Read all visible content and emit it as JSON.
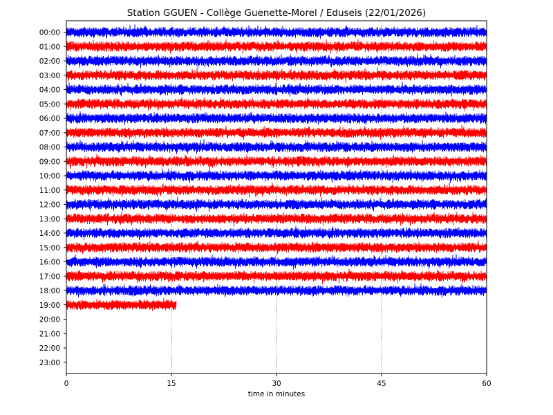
{
  "chart_data": {
    "type": "line",
    "title": "Station GGUEN -  Collège Guenette-Morel / Eduseis (22/01/2026)",
    "xlabel": "time in minutes",
    "ylabel": "",
    "xlim": [
      0,
      60
    ],
    "x_ticks": [
      "0",
      "15",
      "30",
      "45",
      "60"
    ],
    "y_ticks": [
      "00:00",
      "01:00",
      "02:00",
      "03:00",
      "04:00",
      "05:00",
      "06:00",
      "07:00",
      "08:00",
      "09:00",
      "10:00",
      "11:00",
      "12:00",
      "13:00",
      "14:00",
      "15:00",
      "16:00",
      "17:00",
      "18:00",
      "19:00",
      "20:00",
      "21:00",
      "22:00",
      "23:00"
    ],
    "grid": "vertical dotted at 15, 30, 45 minutes",
    "trace_colors": [
      "#0000ff",
      "#ff0000"
    ],
    "traces": [
      {
        "hour": "00:00",
        "end_minute": 60
      },
      {
        "hour": "01:00",
        "end_minute": 60
      },
      {
        "hour": "02:00",
        "end_minute": 60
      },
      {
        "hour": "03:00",
        "end_minute": 60
      },
      {
        "hour": "04:00",
        "end_minute": 60
      },
      {
        "hour": "05:00",
        "end_minute": 60
      },
      {
        "hour": "06:00",
        "end_minute": 60
      },
      {
        "hour": "07:00",
        "end_minute": 60
      },
      {
        "hour": "08:00",
        "end_minute": 60
      },
      {
        "hour": "09:00",
        "end_minute": 60
      },
      {
        "hour": "10:00",
        "end_minute": 60
      },
      {
        "hour": "11:00",
        "end_minute": 60
      },
      {
        "hour": "12:00",
        "end_minute": 60
      },
      {
        "hour": "13:00",
        "end_minute": 60
      },
      {
        "hour": "14:00",
        "end_minute": 60
      },
      {
        "hour": "15:00",
        "end_minute": 60
      },
      {
        "hour": "16:00",
        "end_minute": 60
      },
      {
        "hour": "17:00",
        "end_minute": 60
      },
      {
        "hour": "18:00",
        "end_minute": 60
      },
      {
        "hour": "19:00",
        "end_minute": 15.7
      }
    ]
  }
}
